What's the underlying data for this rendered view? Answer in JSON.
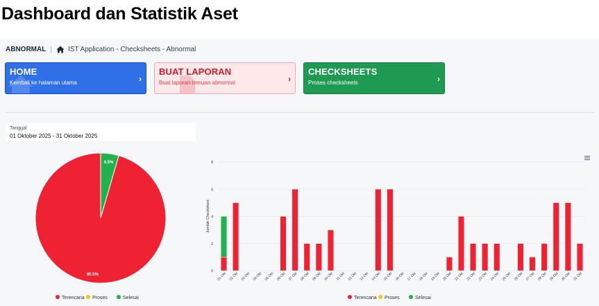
{
  "page_title": "Dashboard dan Statistik Aset",
  "breadcrumb": {
    "section": "ABNORMAL",
    "path": "IST Application - Checksheets - Abnormal"
  },
  "cards": {
    "home": {
      "title": "HOME",
      "subtitle": "Kembali ke halaman utama"
    },
    "report": {
      "title": "BUAT LAPORAN",
      "subtitle": "Buat laporan temuan abnormal"
    },
    "checksheets": {
      "title": "CHECKSHEETS",
      "subtitle": "Proses checksheets"
    }
  },
  "filter": {
    "label": "Tanggal",
    "value": "01 Oktober 2025 - 31 Oktober 2025"
  },
  "colors": {
    "terencana": "#ee2233",
    "proses": "#f5c518",
    "selesai": "#22b14c"
  },
  "chart_data": [
    {
      "type": "pie",
      "slices": [
        {
          "name": "Terencana",
          "value": 95.5,
          "label": "95.5%"
        },
        {
          "name": "Proses",
          "value": 0,
          "label": ""
        },
        {
          "name": "Selesai",
          "value": 4.5,
          "label": "4.5%"
        }
      ],
      "legend": [
        "Terencana",
        "Proses",
        "Selesai"
      ],
      "legend_position": "bottom"
    },
    {
      "type": "bar",
      "stacked": true,
      "ylabel": "Jumlah Checksheet",
      "ylim": [
        0,
        8
      ],
      "yticks": [
        "0",
        "2",
        "4",
        "6",
        "8"
      ],
      "grid": true,
      "legend_position": "bottom",
      "categories": [
        "01 Okt",
        "02 Okt",
        "03 Okt",
        "04 Okt",
        "05 Okt",
        "06 Okt",
        "07 Okt",
        "08 Okt",
        "09 Okt",
        "10 Okt",
        "11 Okt",
        "12 Okt",
        "13 Okt",
        "14 Okt",
        "15 Okt",
        "16 Okt",
        "17 Okt",
        "18 Okt",
        "19 Okt",
        "20 Okt",
        "21 Okt",
        "22 Okt",
        "23 Okt",
        "24 Okt",
        "25 Okt",
        "26 Okt",
        "27 Okt",
        "28 Okt",
        "29 Okt",
        "30 Okt",
        "31 Okt"
      ],
      "series": [
        {
          "name": "Terencana",
          "values": [
            1,
            5,
            0,
            0,
            0,
            4,
            6,
            2,
            2,
            3,
            0,
            0,
            0,
            6,
            6,
            0,
            0,
            0,
            0,
            1,
            4,
            2,
            2,
            2,
            0,
            2,
            1,
            2,
            5,
            5,
            2
          ]
        },
        {
          "name": "Proses",
          "values": [
            0,
            0,
            0,
            0,
            0,
            0,
            0,
            0,
            0,
            0,
            0,
            0,
            0,
            0,
            0,
            0,
            0,
            0,
            0,
            0,
            0,
            0,
            0,
            0,
            0,
            0,
            0,
            0,
            0,
            0,
            0
          ]
        },
        {
          "name": "Selesai",
          "values": [
            3,
            0,
            0,
            0,
            0,
            0,
            0,
            0,
            0,
            0,
            0,
            0,
            0,
            0,
            0,
            0,
            0,
            0,
            0,
            0,
            0,
            0,
            0,
            0,
            0,
            0,
            0,
            0,
            0,
            0,
            0
          ]
        }
      ]
    }
  ]
}
